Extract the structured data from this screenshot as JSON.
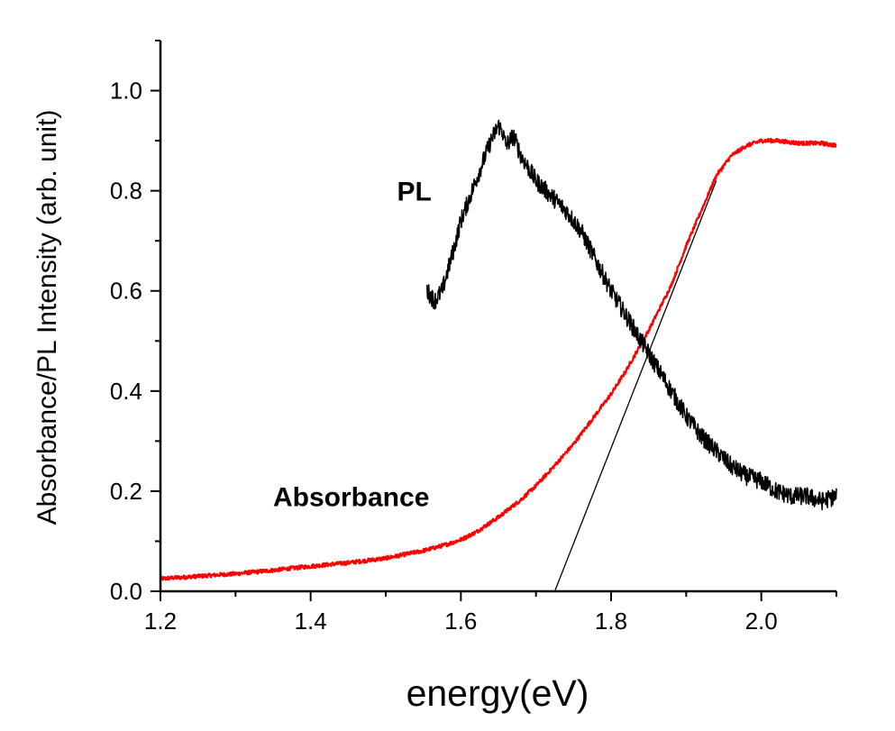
{
  "chart_data": {
    "type": "line",
    "title": "",
    "xlabel": "energy(eV)",
    "ylabel": "Absorbance/PL Intensity (arb. unit)",
    "xlim": [
      1.2,
      2.1
    ],
    "ylim": [
      0.0,
      1.1
    ],
    "x_ticks": [
      "1.2",
      "1.4",
      "1.6",
      "1.8",
      "2.0"
    ],
    "y_ticks": [
      "0.0",
      "0.2",
      "0.4",
      "0.6",
      "0.8",
      "1.0"
    ],
    "grid": false,
    "legend": "none",
    "annotations": [
      {
        "text": "PL",
        "x": 1.515,
        "y": 0.78
      },
      {
        "text": "Absorbance",
        "x": 1.35,
        "y": 0.17
      }
    ],
    "series": [
      {
        "color": "#ff0000",
        "noise": 0.004,
        "x": [
          1.2,
          1.22,
          1.25,
          1.3,
          1.35,
          1.4,
          1.45,
          1.5,
          1.55,
          1.58,
          1.6,
          1.62,
          1.65,
          1.68,
          1.7,
          1.72,
          1.75,
          1.78,
          1.8,
          1.82,
          1.85,
          1.88,
          1.9,
          1.92,
          1.94,
          1.96,
          1.98,
          2.0,
          2.02,
          2.05,
          2.08,
          2.1
        ],
        "y": [
          0.025,
          0.027,
          0.03,
          0.035,
          0.042,
          0.05,
          0.057,
          0.066,
          0.081,
          0.093,
          0.103,
          0.118,
          0.148,
          0.183,
          0.211,
          0.243,
          0.294,
          0.354,
          0.394,
          0.441,
          0.521,
          0.611,
          0.69,
          0.76,
          0.83,
          0.87,
          0.89,
          0.9,
          0.9,
          0.895,
          0.895,
          0.89
        ]
      },
      {
        "color": "#000000",
        "noise": 0.018,
        "x": [
          1.555,
          1.565,
          1.575,
          1.59,
          1.6,
          1.62,
          1.64,
          1.65,
          1.655,
          1.66,
          1.67,
          1.68,
          1.7,
          1.72,
          1.74,
          1.76,
          1.78,
          1.8,
          1.82,
          1.84,
          1.86,
          1.88,
          1.9,
          1.92,
          1.94,
          1.96,
          1.98,
          2.0,
          2.02,
          2.04,
          2.06,
          2.08,
          2.1
        ],
        "y": [
          0.6,
          0.58,
          0.6,
          0.68,
          0.74,
          0.82,
          0.9,
          0.93,
          0.92,
          0.89,
          0.91,
          0.87,
          0.82,
          0.79,
          0.76,
          0.72,
          0.66,
          0.6,
          0.55,
          0.5,
          0.45,
          0.4,
          0.35,
          0.31,
          0.28,
          0.25,
          0.23,
          0.22,
          0.2,
          0.19,
          0.19,
          0.18,
          0.19
        ]
      },
      {
        "color": "#000000",
        "noise": 0,
        "x": [
          1.725,
          1.94
        ],
        "y": [
          0.0,
          0.82
        ]
      }
    ]
  }
}
